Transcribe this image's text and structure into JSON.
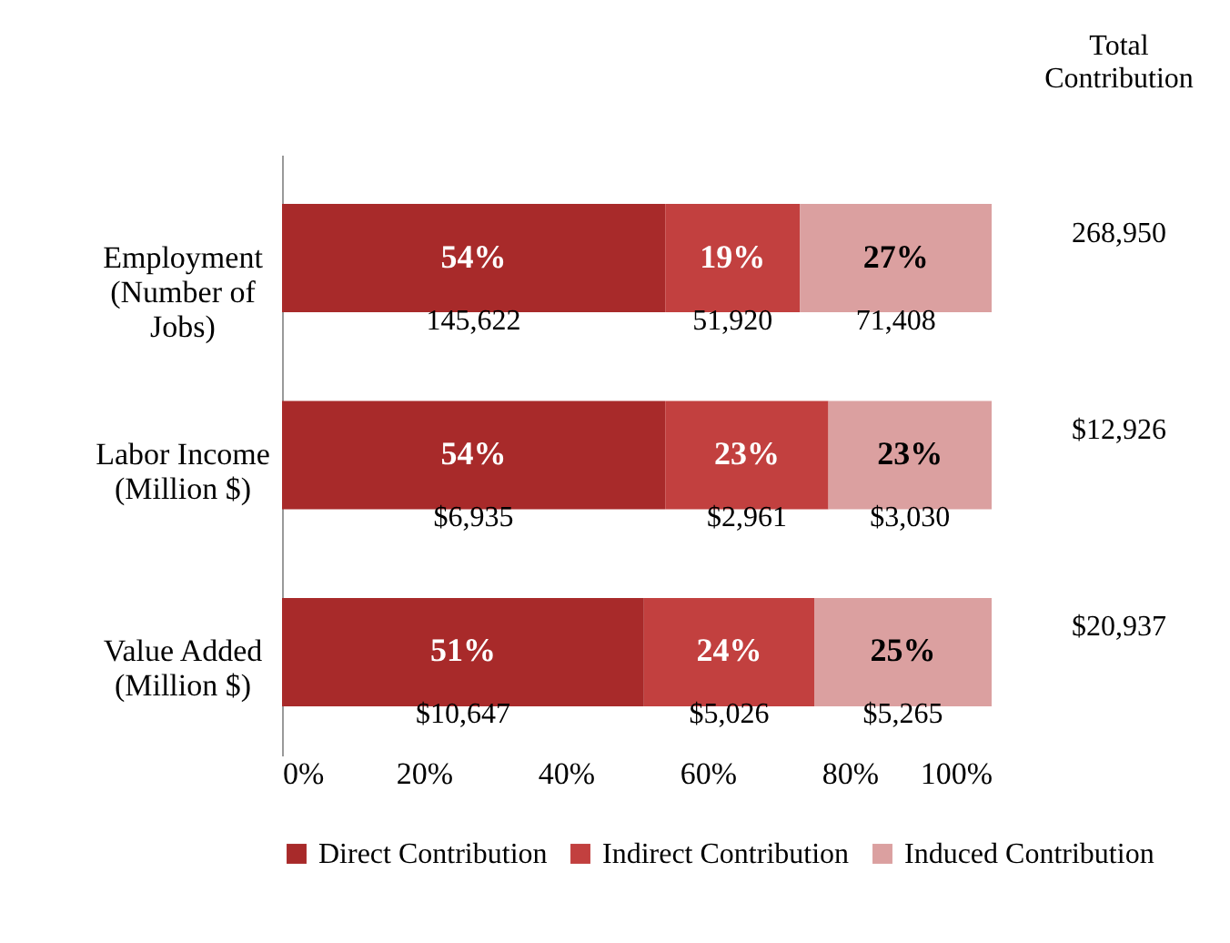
{
  "chart_data": {
    "type": "bar",
    "orientation": "horizontal",
    "stacked": true,
    "categories": [
      "Employment (Number of Jobs)",
      "Labor Income (Million $)",
      "Value Added (Million $)"
    ],
    "series": [
      {
        "name": "Direct Contribution",
        "color": "#a82a2a",
        "values": [
          54,
          54,
          51
        ],
        "value_labels": [
          "54%",
          "54%",
          "51%"
        ]
      },
      {
        "name": "Indirect Contribution",
        "color": "#c2403f",
        "values": [
          19,
          23,
          24
        ],
        "value_labels": [
          "19%",
          "23%",
          "24%"
        ]
      },
      {
        "name": "Induced Contribution",
        "color": "#dba0a0",
        "values": [
          27,
          23,
          25
        ],
        "value_labels": [
          "27%",
          "23%",
          "25%"
        ]
      }
    ],
    "xlim": [
      0,
      100
    ],
    "xticks": [
      {
        "value": 0,
        "label": "0%"
      },
      {
        "value": 20,
        "label": "20%"
      },
      {
        "value": 40,
        "label": "40%"
      },
      {
        "value": 60,
        "label": "60%"
      },
      {
        "value": 80,
        "label": "80%"
      },
      {
        "value": 100,
        "label": "100%"
      }
    ],
    "annotations": [
      "Total Contribution",
      "268,950",
      "145,622",
      "51,920",
      "71,408",
      "$12,926",
      "$6,935",
      "$2,961",
      "$3,030",
      "$20,937",
      "$10,647",
      "$5,026",
      "$5,265"
    ],
    "grid": false,
    "legend": "bottom"
  }
}
